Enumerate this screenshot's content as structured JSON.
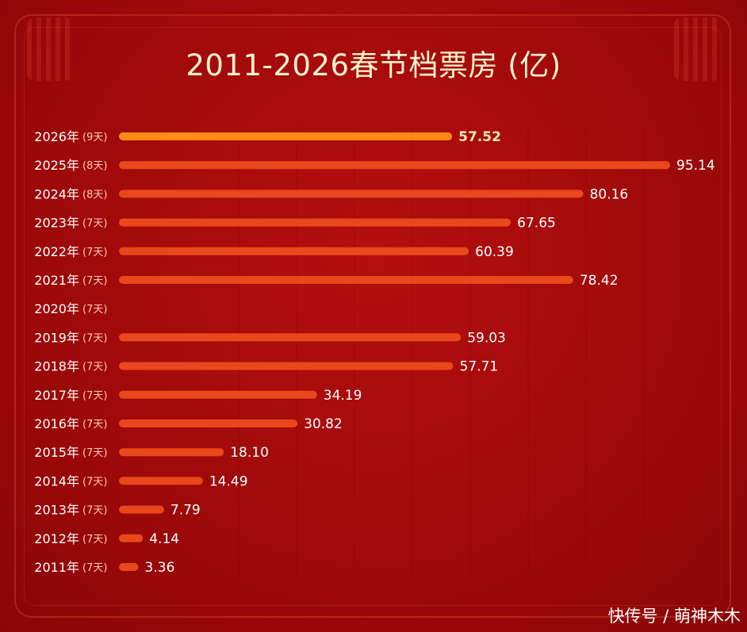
{
  "chart_data": {
    "type": "bar",
    "title": "2011-2026春节档票房 (亿)",
    "categories": [
      "2026年",
      "2025年",
      "2024年",
      "2023年",
      "2022年",
      "2021年",
      "2020年",
      "2019年",
      "2018年",
      "2017年",
      "2016年",
      "2015年",
      "2014年",
      "2013年",
      "2012年",
      "2011年"
    ],
    "days": [
      "(9天)",
      "(8天)",
      "(8天)",
      "(7天)",
      "(7天)",
      "(7天)",
      "(7天)",
      "(7天)",
      "(7天)",
      "(7天)",
      "(7天)",
      "(7天)",
      "(7天)",
      "(7天)",
      "(7天)",
      "(7天)"
    ],
    "values": [
      57.52,
      95.14,
      80.16,
      67.65,
      60.39,
      78.42,
      null,
      59.03,
      57.71,
      34.19,
      30.82,
      18.1,
      14.49,
      7.79,
      4.14,
      3.36
    ],
    "value_labels": [
      "57.52",
      "95.14",
      "80.16",
      "67.65",
      "60.39",
      "78.42",
      "",
      "59.03",
      "57.71",
      "34.19",
      "30.82",
      "18.10",
      "14.49",
      "7.79",
      "4.14",
      "3.36"
    ],
    "highlight_index": 0,
    "xlim": [
      0,
      95.14
    ],
    "grid": true,
    "colors": {
      "bar": "#e8481c",
      "highlight_bar": "#ff8a18",
      "background": "#a00a0a",
      "text": "#ffffff",
      "title": "#fff3d0"
    }
  },
  "watermark": "快传号 / 萌神木木"
}
